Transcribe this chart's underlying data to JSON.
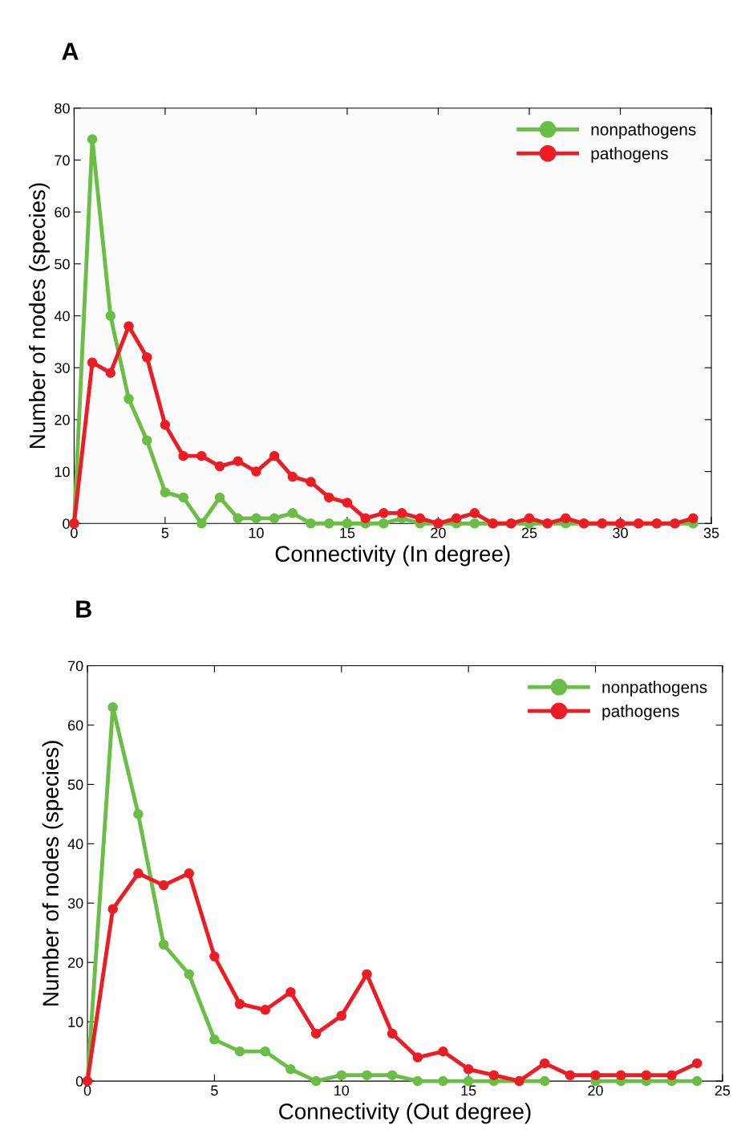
{
  "chart_data": [
    {
      "type": "line",
      "title": "A",
      "xlabel": "Connectivity (In degree)",
      "ylabel": "Number of nodes (species)",
      "xlim": [
        0,
        35
      ],
      "xticks": [
        0,
        5,
        10,
        15,
        20,
        25,
        30,
        35
      ],
      "ylim": [
        0,
        80
      ],
      "yticks": [
        0,
        10,
        20,
        30,
        40,
        50,
        60,
        70,
        80
      ],
      "legend": "top right",
      "marker": "circle",
      "line_style": "solid",
      "grid": false,
      "x": [
        0,
        1,
        2,
        3,
        4,
        5,
        6,
        7,
        8,
        9,
        10,
        11,
        12,
        13,
        14,
        15,
        16,
        17,
        18,
        19,
        20,
        21,
        22,
        23,
        24,
        25,
        26,
        27,
        28,
        29,
        30,
        31,
        32,
        33,
        34
      ],
      "series": [
        {
          "name": "nonpathogens",
          "color": "#6abd45",
          "values": [
            0,
            74,
            40,
            24,
            16,
            6,
            5,
            0,
            5,
            1,
            1,
            1,
            2,
            0,
            0,
            0,
            0,
            0,
            1,
            0,
            0,
            0,
            0,
            0,
            0,
            0,
            0,
            0,
            0,
            0,
            0,
            0,
            0,
            0,
            0
          ]
        },
        {
          "name": "pathogens",
          "color": "#ed1c24",
          "values": [
            0,
            31,
            29,
            38,
            32,
            19,
            13,
            13,
            11,
            12,
            10,
            13,
            9,
            8,
            5,
            4,
            1,
            2,
            2,
            1,
            0,
            1,
            2,
            0,
            0,
            1,
            0,
            1,
            0,
            0,
            0,
            0,
            0,
            0,
            1
          ]
        }
      ]
    },
    {
      "type": "line",
      "title": "B",
      "xlabel": "Connectivity (Out degree)",
      "ylabel": "Number of nodes (species)",
      "xlim": [
        0,
        25
      ],
      "xticks": [
        0,
        5,
        10,
        15,
        20,
        25
      ],
      "ylim": [
        0,
        70
      ],
      "yticks": [
        0,
        10,
        20,
        30,
        40,
        50,
        60,
        70
      ],
      "legend": "top right",
      "marker": "circle",
      "line_style": "solid",
      "grid": false,
      "x": [
        0,
        1,
        2,
        3,
        4,
        5,
        6,
        7,
        8,
        9,
        10,
        11,
        12,
        13,
        14,
        15,
        16,
        17,
        18,
        19,
        20,
        21,
        22,
        23,
        24
      ],
      "series": [
        {
          "name": "nonpathogens",
          "color": "#6abd45",
          "values": [
            0,
            63,
            45,
            23,
            18,
            7,
            5,
            5,
            2,
            0,
            1,
            1,
            1,
            0,
            0,
            0,
            0,
            0,
            0,
            null,
            0,
            0,
            0,
            0,
            0
          ]
        },
        {
          "name": "pathogens",
          "color": "#ed1c24",
          "values": [
            0,
            29,
            35,
            33,
            35,
            21,
            13,
            12,
            15,
            8,
            11,
            18,
            8,
            4,
            5,
            2,
            1,
            0,
            3,
            1,
            1,
            1,
            1,
            1,
            3
          ]
        }
      ]
    }
  ]
}
